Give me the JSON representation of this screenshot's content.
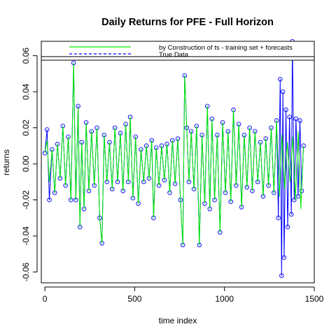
{
  "chart_data": {
    "type": "line",
    "title": "Daily Returns for PFE - Full Horizon",
    "xlabel": "time index",
    "ylabel": "returns",
    "xlim": [
      -20,
      1500
    ],
    "ylim": [
      -0.066,
      0.068
    ],
    "x_ticks": [
      0,
      500,
      1000,
      1500
    ],
    "x_tick_labels": [
      "0",
      "500",
      "1000",
      "1500"
    ],
    "y_ticks": [
      -0.06,
      -0.04,
      -0.02,
      0.0,
      0.02,
      0.04,
      0.06
    ],
    "y_tick_labels": [
      "-0.06",
      "-0.04",
      "-0.02",
      "0.00",
      "0.02",
      "0.04",
      "0.06"
    ],
    "grid": false,
    "legend_position": "top",
    "legend_reference_y": 0.0595,
    "series": [
      {
        "name": "by Construction of ts - training set + forecasts",
        "color": "#00ee00",
        "style": "solid",
        "points": [
          [
            0,
            0.006
          ],
          [
            12,
            0.013
          ],
          [
            25,
            -0.01
          ],
          [
            40,
            0.008
          ],
          [
            55,
            -0.016
          ],
          [
            70,
            0.011
          ],
          [
            85,
            -0.008
          ],
          [
            100,
            0.021
          ],
          [
            115,
            -0.012
          ],
          [
            130,
            0.015
          ],
          [
            145,
            -0.02
          ],
          [
            160,
            0.056
          ],
          [
            172,
            -0.02
          ],
          [
            185,
            0.031
          ],
          [
            195,
            -0.035
          ],
          [
            205,
            0.012
          ],
          [
            218,
            -0.025
          ],
          [
            230,
            0.023
          ],
          [
            245,
            -0.015
          ],
          [
            260,
            0.018
          ],
          [
            275,
            -0.012
          ],
          [
            290,
            0.02
          ],
          [
            305,
            -0.03
          ],
          [
            318,
            -0.044
          ],
          [
            330,
            0.016
          ],
          [
            345,
            -0.01
          ],
          [
            360,
            0.012
          ],
          [
            375,
            -0.014
          ],
          [
            390,
            0.02
          ],
          [
            405,
            -0.01
          ],
          [
            420,
            0.017
          ],
          [
            435,
            -0.015
          ],
          [
            450,
            0.022
          ],
          [
            465,
            -0.01
          ],
          [
            475,
            0.026
          ],
          [
            490,
            -0.019
          ],
          [
            505,
            0.015
          ],
          [
            520,
            -0.022
          ],
          [
            535,
            0.008
          ],
          [
            550,
            -0.01
          ],
          [
            565,
            0.01
          ],
          [
            580,
            -0.008
          ],
          [
            595,
            0.013
          ],
          [
            605,
            -0.03
          ],
          [
            620,
            0.009
          ],
          [
            635,
            -0.012
          ],
          [
            650,
            0.01
          ],
          [
            665,
            -0.009
          ],
          [
            680,
            0.011
          ],
          [
            695,
            -0.016
          ],
          [
            710,
            0.013
          ],
          [
            725,
            -0.011
          ],
          [
            740,
            0.014
          ],
          [
            755,
            -0.02
          ],
          [
            768,
            -0.045
          ],
          [
            778,
            0.049
          ],
          [
            790,
            0.02
          ],
          [
            802,
            -0.01
          ],
          [
            815,
            0.018
          ],
          [
            830,
            -0.014
          ],
          [
            845,
            0.021
          ],
          [
            860,
            -0.045
          ],
          [
            875,
            0.016
          ],
          [
            890,
            -0.022
          ],
          [
            905,
            0.032
          ],
          [
            918,
            -0.025
          ],
          [
            930,
            0.025
          ],
          [
            945,
            -0.02
          ],
          [
            960,
            0.016
          ],
          [
            975,
            -0.038
          ],
          [
            990,
            0.023
          ],
          [
            1005,
            -0.016
          ],
          [
            1020,
            0.018
          ],
          [
            1035,
            -0.021
          ],
          [
            1050,
            0.03
          ],
          [
            1065,
            -0.012
          ],
          [
            1080,
            0.022
          ],
          [
            1095,
            -0.024
          ],
          [
            1110,
            0.016
          ],
          [
            1125,
            -0.013
          ],
          [
            1140,
            0.02
          ],
          [
            1155,
            -0.015
          ],
          [
            1170,
            0.018
          ],
          [
            1185,
            -0.01
          ],
          [
            1200,
            0.012
          ],
          [
            1215,
            -0.018
          ],
          [
            1230,
            0.014
          ],
          [
            1245,
            -0.012
          ],
          [
            1260,
            0.02
          ],
          [
            1275,
            -0.016
          ],
          [
            1290,
            0.024
          ],
          [
            1305,
            -0.018
          ],
          [
            1320,
            0.016
          ],
          [
            1335,
            -0.014
          ],
          [
            1350,
            0.012
          ],
          [
            1365,
            -0.01
          ],
          [
            1380,
            0.015
          ],
          [
            1395,
            -0.02
          ],
          [
            1410,
            0.018
          ],
          [
            1425,
            -0.025
          ],
          [
            1440,
            0.01
          ]
        ]
      },
      {
        "name": "True Data",
        "color": "#0000ff",
        "style": "dashed",
        "marker": "open-circle",
        "points": [
          [
            0,
            0.006
          ],
          [
            12,
            0.019
          ],
          [
            25,
            -0.02
          ],
          [
            40,
            0.008
          ],
          [
            55,
            -0.016
          ],
          [
            70,
            0.011
          ],
          [
            85,
            -0.008
          ],
          [
            100,
            0.021
          ],
          [
            115,
            -0.012
          ],
          [
            130,
            0.015
          ],
          [
            145,
            -0.02
          ],
          [
            160,
            0.056
          ],
          [
            172,
            -0.02
          ],
          [
            185,
            0.032
          ],
          [
            195,
            -0.035
          ],
          [
            205,
            0.012
          ],
          [
            218,
            -0.025
          ],
          [
            230,
            0.023
          ],
          [
            245,
            -0.015
          ],
          [
            260,
            0.018
          ],
          [
            275,
            -0.012
          ],
          [
            290,
            0.02
          ],
          [
            305,
            -0.03
          ],
          [
            318,
            -0.044
          ],
          [
            330,
            0.016
          ],
          [
            345,
            -0.01
          ],
          [
            360,
            0.012
          ],
          [
            375,
            -0.014
          ],
          [
            390,
            0.02
          ],
          [
            405,
            -0.01
          ],
          [
            420,
            0.017
          ],
          [
            435,
            -0.015
          ],
          [
            450,
            0.022
          ],
          [
            465,
            -0.01
          ],
          [
            475,
            0.026
          ],
          [
            490,
            -0.019
          ],
          [
            505,
            0.015
          ],
          [
            520,
            -0.022
          ],
          [
            535,
            0.008
          ],
          [
            550,
            -0.01
          ],
          [
            565,
            0.01
          ],
          [
            580,
            -0.008
          ],
          [
            595,
            0.013
          ],
          [
            605,
            -0.03
          ],
          [
            620,
            0.009
          ],
          [
            635,
            -0.012
          ],
          [
            650,
            0.01
          ],
          [
            665,
            -0.009
          ],
          [
            680,
            0.011
          ],
          [
            695,
            -0.016
          ],
          [
            710,
            0.013
          ],
          [
            725,
            -0.011
          ],
          [
            740,
            0.014
          ],
          [
            755,
            -0.02
          ],
          [
            768,
            -0.045
          ],
          [
            778,
            0.049
          ],
          [
            790,
            0.02
          ],
          [
            802,
            -0.01
          ],
          [
            815,
            0.018
          ],
          [
            830,
            -0.014
          ],
          [
            845,
            0.021
          ],
          [
            860,
            -0.045
          ],
          [
            875,
            0.016
          ],
          [
            890,
            -0.022
          ],
          [
            905,
            0.032
          ],
          [
            918,
            -0.025
          ],
          [
            930,
            0.025
          ],
          [
            945,
            -0.02
          ],
          [
            960,
            0.016
          ],
          [
            975,
            -0.038
          ],
          [
            990,
            0.023
          ],
          [
            1005,
            -0.016
          ],
          [
            1020,
            0.018
          ],
          [
            1035,
            -0.021
          ],
          [
            1050,
            0.03
          ],
          [
            1065,
            -0.012
          ],
          [
            1080,
            0.022
          ],
          [
            1095,
            -0.024
          ],
          [
            1110,
            0.016
          ],
          [
            1125,
            -0.013
          ],
          [
            1140,
            0.02
          ],
          [
            1155,
            -0.015
          ],
          [
            1170,
            0.018
          ],
          [
            1185,
            -0.01
          ],
          [
            1200,
            0.012
          ],
          [
            1215,
            -0.018
          ],
          [
            1230,
            0.014
          ],
          [
            1245,
            -0.012
          ],
          [
            1260,
            0.02
          ],
          [
            1275,
            -0.016
          ],
          [
            1290,
            0.024
          ],
          [
            1300,
            -0.03
          ],
          [
            1310,
            0.047
          ],
          [
            1318,
            -0.062
          ],
          [
            1325,
            0.04
          ],
          [
            1332,
            -0.052
          ],
          [
            1342,
            0.03
          ],
          [
            1352,
            -0.035
          ],
          [
            1362,
            0.026
          ],
          [
            1372,
            -0.028
          ],
          [
            1378,
            0.068
          ],
          [
            1388,
            -0.02
          ],
          [
            1398,
            0.025
          ],
          [
            1410,
            -0.018
          ],
          [
            1420,
            0.024
          ],
          [
            1430,
            -0.015
          ],
          [
            1440,
            0.01
          ]
        ]
      }
    ]
  }
}
